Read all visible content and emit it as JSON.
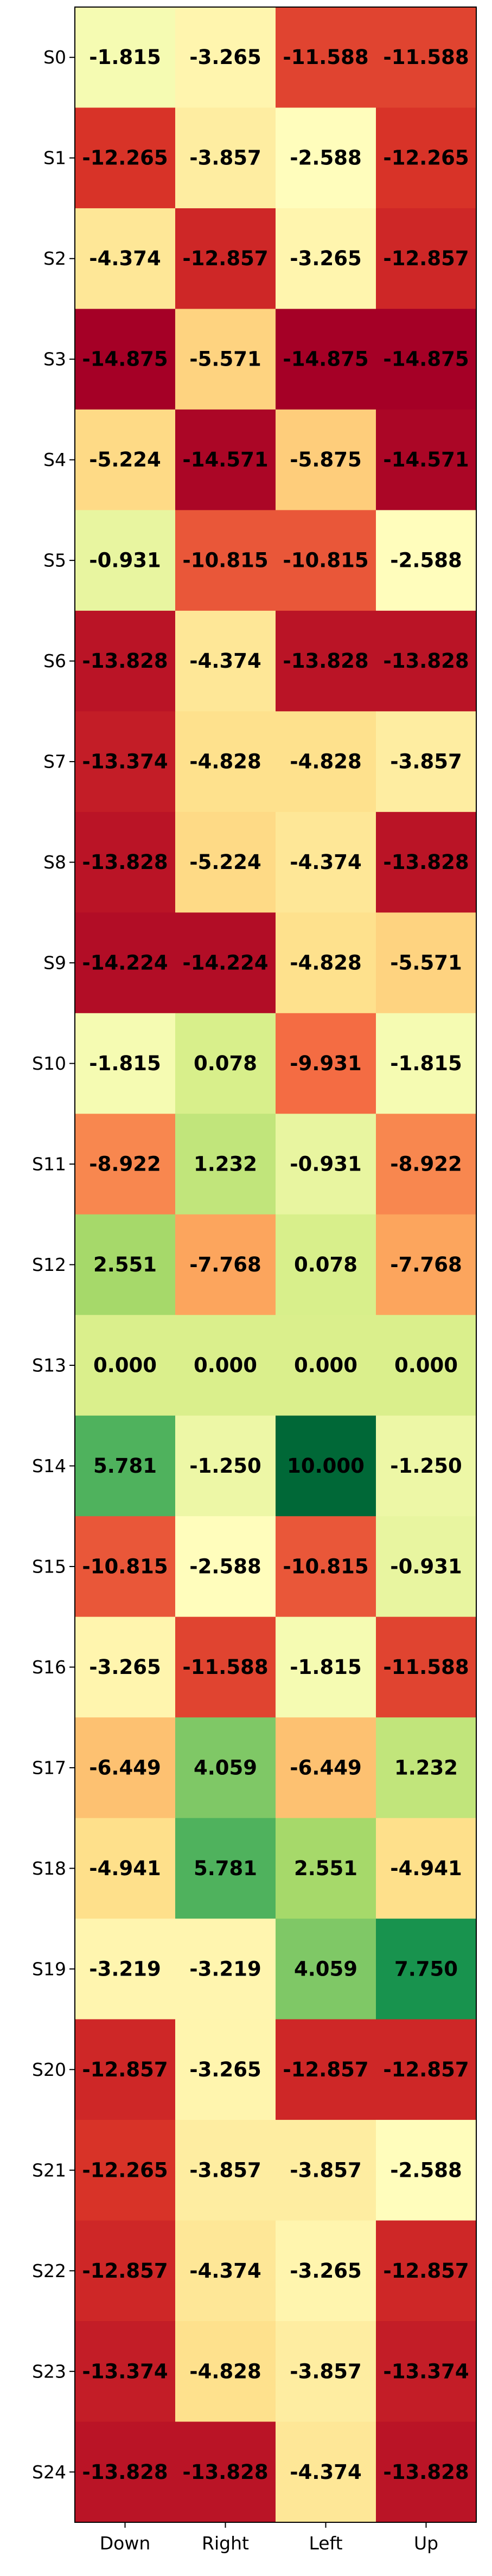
{
  "chart_data": {
    "type": "heatmap",
    "title": "",
    "xlabel": "",
    "ylabel": "",
    "x_labels": [
      "Down",
      "Right",
      "Left",
      "Up"
    ],
    "y_labels": [
      "S0",
      "S1",
      "S2",
      "S3",
      "S4",
      "S5",
      "S6",
      "S7",
      "S8",
      "S9",
      "S10",
      "S11",
      "S12",
      "S13",
      "S14",
      "S15",
      "S16",
      "S17",
      "S18",
      "S19",
      "S20",
      "S21",
      "S22",
      "S23",
      "S24"
    ],
    "value_labels": [
      [
        "-1.815",
        "-3.265",
        "-11.588",
        "-11.588"
      ],
      [
        "-12.265",
        "-3.857",
        "-2.588",
        "-12.265"
      ],
      [
        "-4.374",
        "-12.857",
        "-3.265",
        "-12.857"
      ],
      [
        "-14.875",
        "-5.571",
        "-14.875",
        "-14.875"
      ],
      [
        "-5.224",
        "-14.571",
        "-5.875",
        "-14.571"
      ],
      [
        "-0.931",
        "-10.815",
        "-10.815",
        "-2.588"
      ],
      [
        "-13.828",
        "-4.374",
        "-13.828",
        "-13.828"
      ],
      [
        "-13.374",
        "-4.828",
        "-4.828",
        "-3.857"
      ],
      [
        "-13.828",
        "-5.224",
        "-4.374",
        "-13.828"
      ],
      [
        "-14.224",
        "-14.224",
        "-4.828",
        "-5.571"
      ],
      [
        "-1.815",
        "0.078",
        "-9.931",
        "-1.815"
      ],
      [
        "-8.922",
        "1.232",
        "-0.931",
        "-8.922"
      ],
      [
        "2.551",
        "-7.768",
        "0.078",
        "-7.768"
      ],
      [
        "0.000",
        "0.000",
        "0.000",
        "0.000"
      ],
      [
        "5.781",
        "-1.250",
        "10.000",
        "-1.250"
      ],
      [
        "-10.815",
        "-2.588",
        "-10.815",
        "-0.931"
      ],
      [
        "-3.265",
        "-11.588",
        "-1.815",
        "-11.588"
      ],
      [
        "-6.449",
        "4.059",
        "-6.449",
        "1.232"
      ],
      [
        "-4.941",
        "5.781",
        "2.551",
        "-4.941"
      ],
      [
        "-3.219",
        "-3.219",
        "4.059",
        "7.750"
      ],
      [
        "-12.857",
        "-3.265",
        "-12.857",
        "-12.857"
      ],
      [
        "-12.265",
        "-3.857",
        "-3.857",
        "-2.588"
      ],
      [
        "-12.857",
        "-4.374",
        "-3.265",
        "-12.857"
      ],
      [
        "-13.374",
        "-4.828",
        "-3.857",
        "-13.374"
      ],
      [
        "-13.828",
        "-13.828",
        "-4.374",
        "-13.828"
      ]
    ],
    "colormap": "RdYlGn",
    "vmin": -14.875,
    "vmax": 10.0,
    "colorbar": false,
    "grid": false
  }
}
